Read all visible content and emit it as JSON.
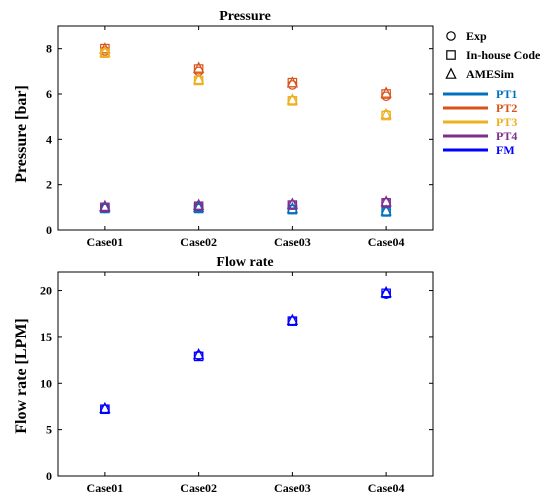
{
  "legend": {
    "markers": [
      {
        "label": "Exp",
        "shape": "circle"
      },
      {
        "label": "In-house Code",
        "shape": "square"
      },
      {
        "label": "AMESim",
        "shape": "triangle"
      }
    ],
    "series": [
      {
        "label": "PT1",
        "color": "#0072BD"
      },
      {
        "label": "PT2",
        "color": "#D95319"
      },
      {
        "label": "PT3",
        "color": "#EDB120"
      },
      {
        "label": "PT4",
        "color": "#7E2F8E"
      },
      {
        "label": "FM",
        "color": "#0000FF"
      }
    ]
  },
  "chart_data": [
    {
      "type": "scatter",
      "title": "Pressure",
      "xlabel": "",
      "ylabel": "Pressure [bar]",
      "categories": [
        "Case01",
        "Case02",
        "Case03",
        "Case04"
      ],
      "ylim": [
        0,
        9
      ],
      "yticks": [
        0,
        2,
        4,
        6,
        8
      ],
      "series": [
        {
          "name": "PT1",
          "color": "#0072BD",
          "exp": [
            0.95,
            0.95,
            0.9,
            0.8
          ],
          "code": [
            0.95,
            0.95,
            0.9,
            0.8
          ],
          "amesim": [
            1.0,
            1.0,
            0.95,
            0.85
          ]
        },
        {
          "name": "PT2",
          "color": "#D95319",
          "exp": [
            7.9,
            7.0,
            6.4,
            5.9
          ],
          "code": [
            8.0,
            7.1,
            6.5,
            6.0
          ],
          "amesim": [
            8.0,
            7.15,
            6.5,
            6.05
          ]
        },
        {
          "name": "PT3",
          "color": "#EDB120",
          "exp": [
            7.8,
            6.6,
            5.7,
            5.1
          ],
          "code": [
            7.8,
            6.6,
            5.7,
            5.05
          ],
          "amesim": [
            7.85,
            6.65,
            5.75,
            5.1
          ]
        },
        {
          "name": "PT4",
          "color": "#7E2F8E",
          "exp": [
            1.0,
            1.05,
            1.1,
            1.2
          ],
          "code": [
            1.0,
            1.05,
            1.1,
            1.2
          ],
          "amesim": [
            1.05,
            1.1,
            1.15,
            1.25
          ]
        }
      ]
    },
    {
      "type": "scatter",
      "title": "Flow rate",
      "xlabel": "",
      "ylabel": "Flow rate [LPM]",
      "categories": [
        "Case01",
        "Case02",
        "Case03",
        "Case04"
      ],
      "ylim": [
        0,
        22
      ],
      "yticks": [
        0,
        5,
        10,
        15,
        20
      ],
      "series": [
        {
          "name": "FM",
          "color": "#0000FF",
          "exp": [
            7.2,
            13.0,
            16.7,
            19.6
          ],
          "code": [
            7.2,
            12.9,
            16.7,
            19.7
          ],
          "amesim": [
            7.3,
            13.1,
            16.8,
            19.8
          ]
        }
      ]
    }
  ]
}
